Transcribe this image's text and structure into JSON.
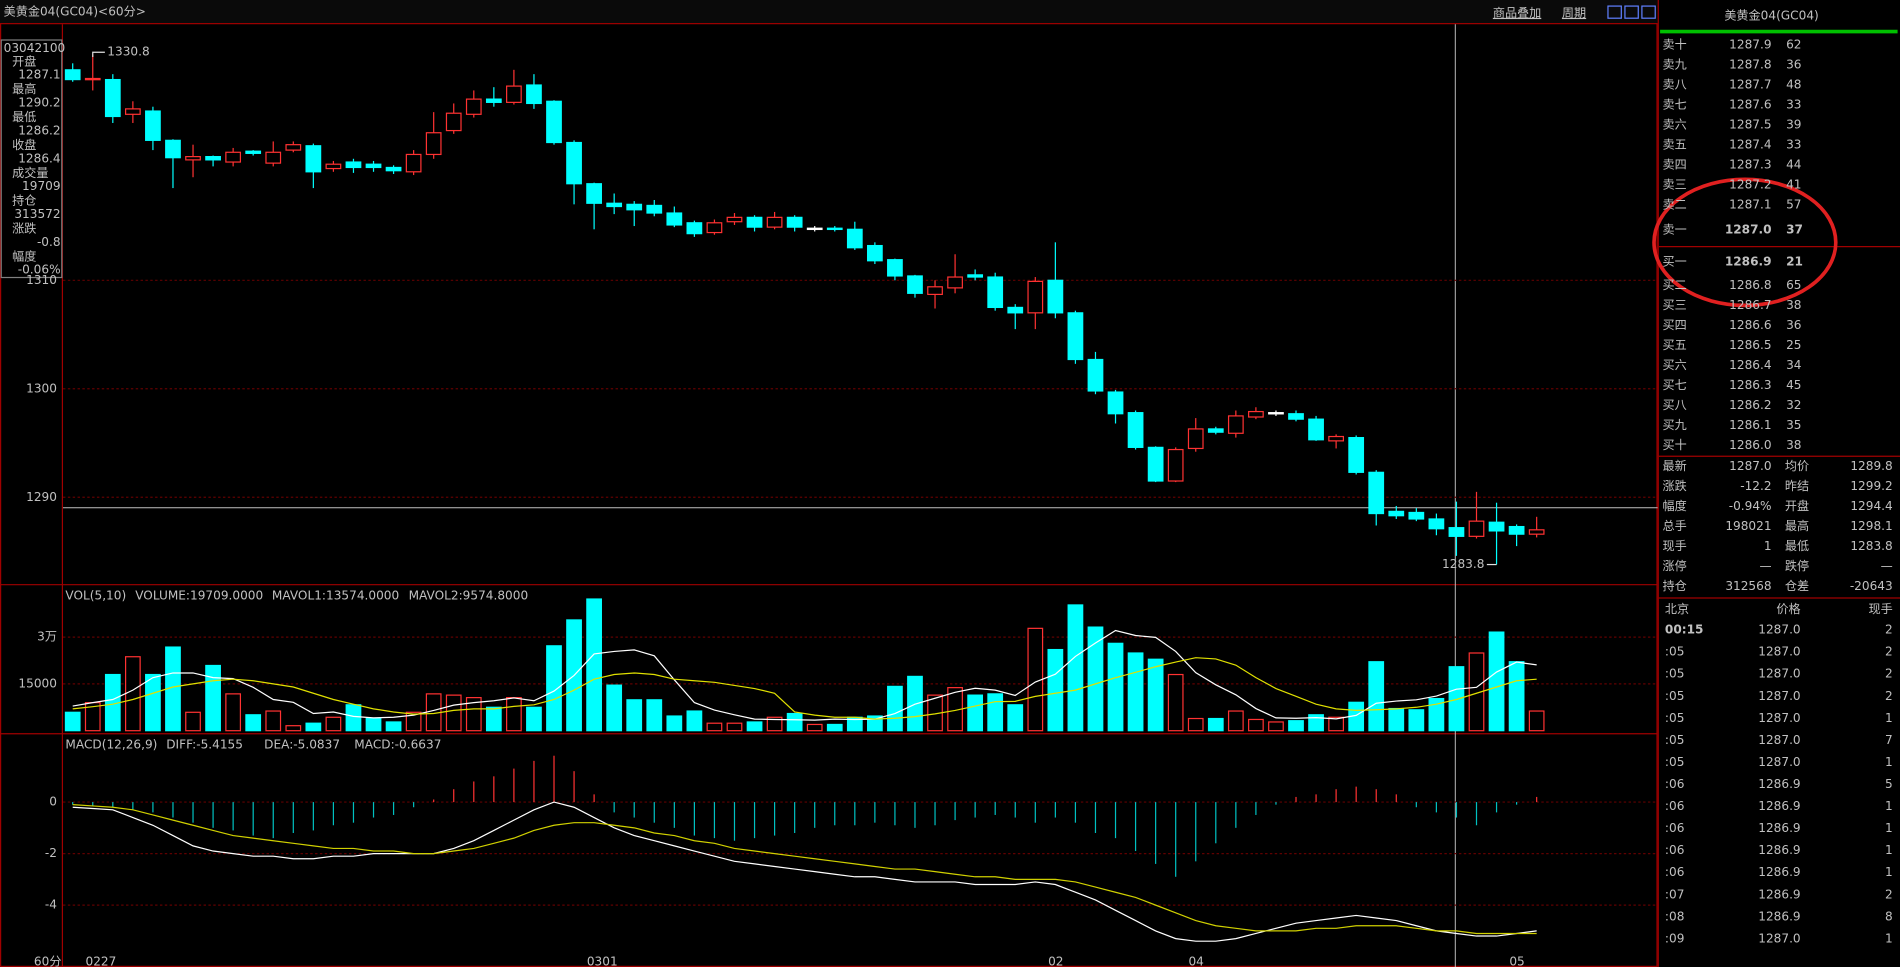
{
  "header": {
    "title": "美黄金04(GC04)<60分>",
    "menu": [
      "商品叠加",
      "周期"
    ],
    "period": "60分"
  },
  "info_box": {
    "time": "03042100",
    "rows": [
      {
        "label": "开盘",
        "value": "1287.1",
        "color": "#00e000"
      },
      {
        "label": "最高",
        "value": "1290.2",
        "color": "#ff3232"
      },
      {
        "label": "最低",
        "value": "1286.2",
        "color": "#00e000"
      },
      {
        "label": "收盘",
        "value": "1286.4",
        "color": "#00e000"
      },
      {
        "label": "成交量",
        "value": "19709",
        "color": "#ffff00"
      },
      {
        "label": "持仓",
        "value": "313572",
        "color": "#ffff00"
      },
      {
        "label": "涨跌",
        "value": "-0.8",
        "color": "#00e000"
      },
      {
        "label": "幅度",
        "value": "-0.06%",
        "color": "#00e000"
      }
    ]
  },
  "chart_data": [
    {
      "type": "candlestick",
      "ylim": [
        1282,
        1333.6
      ],
      "yticks": [
        1290,
        1300,
        1310
      ],
      "categories": [
        null,
        "0227",
        null,
        null,
        null,
        null,
        null,
        null,
        null,
        null,
        null,
        null,
        null,
        null,
        null,
        null,
        null,
        null,
        null,
        null,
        null,
        null,
        null,
        null,
        null,
        null,
        "0301",
        null,
        null,
        null,
        null,
        null,
        null,
        null,
        null,
        null,
        null,
        null,
        null,
        null,
        null,
        null,
        null,
        null,
        null,
        null,
        null,
        null,
        null,
        "02",
        null,
        null,
        null,
        null,
        null,
        null,
        "04",
        null,
        null,
        null,
        null,
        null,
        null,
        null,
        null,
        null,
        null,
        null,
        null,
        null,
        null,
        null,
        "05",
        null
      ],
      "open": [
        1329.4,
        1328.5,
        1328.5,
        1325.3,
        1325.6,
        1322.9,
        1321.1,
        1321.4,
        1320.9,
        1321.9,
        1320.8,
        1322,
        1322.4,
        1320.3,
        1320.9,
        1320.7,
        1320.4,
        1320,
        1321.6,
        1323.8,
        1325.3,
        1326.7,
        1326.4,
        1328,
        1326.5,
        1322.7,
        1318.9,
        1317.1,
        1317,
        1316.9,
        1316.2,
        1315.3,
        1314.4,
        1315.4,
        1315.8,
        1314.9,
        1315.8,
        1314.8,
        1314.8,
        1314.7,
        1313.2,
        1311.9,
        1310.4,
        1308.7,
        1309.3,
        1310.5,
        1310.3,
        1307.5,
        1307,
        1310,
        1307,
        1302.7,
        1299.7,
        1297.8,
        1294.6,
        1291.5,
        1294.5,
        1296.3,
        1295.9,
        1297.4,
        1297.8,
        1297.7,
        1297.2,
        1295.2,
        1295.5,
        1292.3,
        1288.7,
        1288.6,
        1288,
        1287.2,
        1286.4,
        1287.7,
        1287.3,
        1286.6
      ],
      "high": [
        1330,
        1330.8,
        1329,
        1326.5,
        1326,
        1323,
        1322.5,
        1321.5,
        1322.2,
        1322,
        1322.8,
        1322.8,
        1322.6,
        1321,
        1321.2,
        1321,
        1320.6,
        1322,
        1325.5,
        1326.3,
        1327.5,
        1327.8,
        1329.4,
        1329,
        1326.6,
        1322.9,
        1319,
        1318,
        1317.3,
        1317.4,
        1316.8,
        1315.5,
        1315.6,
        1316.2,
        1316,
        1316.3,
        1316,
        1315,
        1315,
        1315.4,
        1313.5,
        1312,
        1310.5,
        1310,
        1312.4,
        1311,
        1310.7,
        1307.8,
        1310.3,
        1313.5,
        1307.2,
        1303.4,
        1299.9,
        1298,
        1294.7,
        1294.6,
        1297.3,
        1296.5,
        1298,
        1298.3,
        1298,
        1298,
        1297.5,
        1295.8,
        1295.7,
        1292.5,
        1289.2,
        1289,
        1288.5,
        1289.6,
        1290.5,
        1289.5,
        1287.5,
        1288.2
      ],
      "low": [
        1328.3,
        1327.5,
        1324.5,
        1324.5,
        1322,
        1318.5,
        1319.5,
        1320.5,
        1320.5,
        1321.5,
        1320.5,
        1321.8,
        1318.5,
        1320,
        1319.9,
        1320,
        1319.8,
        1319.7,
        1321.2,
        1323.5,
        1325,
        1326,
        1326.2,
        1325.8,
        1322.5,
        1317,
        1314.7,
        1316.1,
        1315,
        1315.9,
        1314.9,
        1314,
        1314.2,
        1315.1,
        1314.5,
        1314.7,
        1314.5,
        1314.5,
        1314.5,
        1312.8,
        1311.5,
        1310,
        1308.4,
        1307.4,
        1308.8,
        1310,
        1307.2,
        1305.5,
        1305.5,
        1306.5,
        1302.3,
        1299.5,
        1296.8,
        1294.4,
        1291.4,
        1291.4,
        1294.2,
        1295.8,
        1295.5,
        1297.2,
        1297.5,
        1297,
        1295.2,
        1294.5,
        1292.1,
        1287.4,
        1288,
        1287.8,
        1286.5,
        1284.6,
        1286.2,
        1283.8,
        1285.5,
        1286.3
      ],
      "close": [
        1328.5,
        1328.6,
        1325.1,
        1325.8,
        1322.9,
        1321.3,
        1321.4,
        1321.1,
        1321.8,
        1321.7,
        1321.8,
        1322.5,
        1320,
        1320.7,
        1320.4,
        1320.4,
        1320.1,
        1321.6,
        1323.6,
        1325.4,
        1326.7,
        1326.4,
        1327.9,
        1326.3,
        1322.7,
        1318.9,
        1317.1,
        1316.8,
        1316.5,
        1316.2,
        1315.1,
        1314.3,
        1315.3,
        1315.8,
        1314.9,
        1315.8,
        1314.9,
        1314.8,
        1314.7,
        1313,
        1311.8,
        1310.4,
        1308.8,
        1309.4,
        1310.3,
        1310.3,
        1307.5,
        1307,
        1309.9,
        1307,
        1302.7,
        1299.8,
        1297.7,
        1294.6,
        1291.5,
        1294.4,
        1296.3,
        1296,
        1297.5,
        1297.9,
        1297.8,
        1297.2,
        1295.3,
        1295.6,
        1292.3,
        1288.5,
        1288.3,
        1288,
        1287.1,
        1286.4,
        1287.8,
        1286.9,
        1286.6,
        1287
      ],
      "annotations": [
        {
          "text": "1330.8",
          "index": 1,
          "value": 1330.8
        },
        {
          "text": "1283.8",
          "index": 71,
          "value": 1283.8
        }
      ]
    },
    {
      "type": "bar",
      "title": "VOL(5,10)",
      "readouts": [
        {
          "text": "VOLUME:19709.0000",
          "color": "#c0c0c0"
        },
        {
          "text": "MAVOL1:13574.0000",
          "color": "#ffffff"
        },
        {
          "text": "MAVOL2:9574.8000",
          "color": "#ffff00"
        }
      ],
      "ylim": [
        0,
        46600
      ],
      "yticks": [
        {
          "value": 30000,
          "label": "3万"
        },
        15000
      ],
      "values": [
        5900,
        9000,
        18000,
        23700,
        18000,
        26800,
        5900,
        20900,
        11800,
        5100,
        6300,
        1600,
        2400,
        4300,
        8300,
        3900,
        2800,
        5900,
        11800,
        11400,
        10600,
        7500,
        10600,
        7500,
        27200,
        35500,
        42200,
        14600,
        9900,
        9900,
        4700,
        6300,
        2400,
        2400,
        2800,
        4300,
        5500,
        2000,
        2000,
        4300,
        4700,
        14200,
        17400,
        11400,
        13800,
        11400,
        11800,
        8300,
        32800,
        26000,
        40300,
        33200,
        28000,
        24900,
        22900,
        18000,
        3900,
        3900,
        6300,
        3600,
        2800,
        3200,
        5100,
        4300,
        9100,
        22100,
        7100,
        6700,
        10300,
        20500,
        24900,
        31600,
        22100,
        6300
      ],
      "series": [
        {
          "color": "#ffffff",
          "values": [
            7900,
            9000,
            10000,
            13000,
            17000,
            18500,
            18500,
            17000,
            16700,
            13900,
            10000,
            9100,
            5500,
            6000,
            4600,
            4100,
            4300,
            5000,
            6500,
            8200,
            9000,
            9600,
            10500,
            9600,
            12700,
            17700,
            24600,
            25400,
            25900,
            24000,
            16300,
            9000,
            6600,
            5100,
            3700,
            3600,
            3500,
            3400,
            3700,
            3600,
            3700,
            5500,
            8500,
            10400,
            12300,
            13600,
            13000,
            11300,
            15600,
            18100,
            23800,
            28100,
            32100,
            30500,
            29900,
            25400,
            18600,
            14700,
            11500,
            7100,
            4100,
            4000,
            4200,
            3800,
            4900,
            8800,
            9500,
            9900,
            11100,
            13300,
            13900,
            18800,
            22000,
            21100
          ]
        },
        {
          "color": "#e0e000",
          "values": [
            7000,
            7700,
            8500,
            10000,
            12000,
            14000,
            15000,
            16000,
            16500,
            16000,
            15000,
            14000,
            12000,
            10000,
            8500,
            7000,
            6000,
            5300,
            5500,
            6500,
            7000,
            7000,
            7800,
            8300,
            10000,
            13000,
            16500,
            18000,
            18500,
            18000,
            16500,
            16000,
            15500,
            14500,
            13500,
            12000,
            6000,
            5000,
            4300,
            4300,
            3700,
            4000,
            4500,
            5400,
            6500,
            7900,
            9300,
            9400,
            11000,
            12000,
            13000,
            15000,
            17000,
            18700,
            20500,
            22000,
            23400,
            23000,
            21000,
            17000,
            13500,
            11000,
            8500,
            7000,
            6500,
            6700,
            7000,
            7500,
            8500,
            10000,
            12000,
            14000,
            16000,
            16500
          ]
        }
      ]
    },
    {
      "type": "macd",
      "title": "MACD(12,26,9)",
      "readouts": [
        {
          "text": "DIFF:-5.4155",
          "color": "#ffffff"
        },
        {
          "text": "DEA:-5.0837",
          "color": "#ffff00"
        },
        {
          "text": "MACD:-0.6637",
          "color": "#ff00ff"
        }
      ],
      "ylim": [
        -6.26,
        2.63
      ],
      "yticks": [
        0,
        -2,
        -4
      ],
      "up_color": "#ff3232",
      "down_color": "#00c0c0",
      "values": [
        -0.1,
        -0.15,
        -0.2,
        -0.3,
        -0.4,
        -0.6,
        -0.8,
        -1,
        -1.1,
        -1.3,
        -1.4,
        -1.2,
        -1.1,
        -0.9,
        -0.8,
        -0.6,
        -0.5,
        -0.2,
        0.1,
        0.5,
        0.8,
        1.0,
        1.3,
        1.6,
        1.8,
        1.2,
        0.3,
        -0.4,
        -0.6,
        -0.8,
        -1.0,
        -1.3,
        -1.4,
        -1.5,
        -1.4,
        -1.3,
        -1.2,
        -1.0,
        -0.9,
        -0.9,
        -0.8,
        -0.9,
        -1.0,
        -0.9,
        -0.7,
        -0.6,
        -0.5,
        -0.6,
        -0.8,
        -0.6,
        -0.8,
        -1.2,
        -1.4,
        -1.9,
        -2.4,
        -2.9,
        -2.3,
        -1.6,
        -1.0,
        -0.5,
        -0.1,
        0.2,
        0.3,
        0.5,
        0.6,
        0.5,
        0.3,
        -0.2,
        -0.4,
        -0.6,
        -0.9,
        -0.4,
        -0.1,
        0.2
      ],
      "series": [
        {
          "color": "#ffffff",
          "values": [
            -0.2,
            -0.25,
            -0.3,
            -0.6,
            -0.9,
            -1.3,
            -1.7,
            -1.9,
            -2.0,
            -2.1,
            -2.1,
            -2.2,
            -2.2,
            -2.1,
            -2.1,
            -2.0,
            -2.0,
            -2.0,
            -2.0,
            -1.8,
            -1.5,
            -1.1,
            -0.7,
            -0.3,
            0,
            -0.2,
            -0.6,
            -1.0,
            -1.3,
            -1.5,
            -1.7,
            -1.9,
            -2.1,
            -2.3,
            -2.4,
            -2.5,
            -2.6,
            -2.7,
            -2.8,
            -2.9,
            -2.9,
            -3.0,
            -3.1,
            -3.1,
            -3.1,
            -3.2,
            -3.2,
            -3.2,
            -3.1,
            -3.2,
            -3.5,
            -3.8,
            -4.2,
            -4.6,
            -5.0,
            -5.3,
            -5.4,
            -5.4,
            -5.3,
            -5.1,
            -4.9,
            -4.7,
            -4.6,
            -4.5,
            -4.4,
            -4.5,
            -4.6,
            -4.8,
            -5.0,
            -5.1,
            -5.2,
            -5.2,
            -5.1,
            -5.0
          ]
        },
        {
          "color": "#d0d000",
          "values": [
            -0.1,
            -0.15,
            -0.2,
            -0.3,
            -0.5,
            -0.7,
            -0.9,
            -1.1,
            -1.3,
            -1.4,
            -1.5,
            -1.6,
            -1.7,
            -1.8,
            -1.8,
            -1.9,
            -1.9,
            -2.0,
            -2.0,
            -1.9,
            -1.8,
            -1.6,
            -1.4,
            -1.1,
            -0.9,
            -0.8,
            -0.8,
            -0.9,
            -1.0,
            -1.2,
            -1.3,
            -1.5,
            -1.6,
            -1.8,
            -1.9,
            -2.0,
            -2.1,
            -2.2,
            -2.3,
            -2.4,
            -2.5,
            -2.6,
            -2.6,
            -2.7,
            -2.8,
            -2.9,
            -2.9,
            -3.0,
            -3.0,
            -3.0,
            -3.1,
            -3.3,
            -3.5,
            -3.7,
            -4.0,
            -4.3,
            -4.6,
            -4.8,
            -4.9,
            -5.0,
            -5.0,
            -5.0,
            -4.9,
            -4.9,
            -4.8,
            -4.8,
            -4.8,
            -4.9,
            -5.0,
            -5.0,
            -5.1,
            -5.1,
            -5.1,
            -5.1
          ]
        }
      ]
    }
  ],
  "quote": {
    "title": "美黄金04(GC04)",
    "asks": [
      [
        "卖十",
        "1287.9",
        "62"
      ],
      [
        "卖九",
        "1287.8",
        "36"
      ],
      [
        "卖八",
        "1287.7",
        "48"
      ],
      [
        "卖七",
        "1287.6",
        "33"
      ],
      [
        "卖六",
        "1287.5",
        "39"
      ],
      [
        "卖五",
        "1287.4",
        "33"
      ],
      [
        "卖四",
        "1287.3",
        "44"
      ],
      [
        "卖三",
        "1287.2",
        "41"
      ],
      [
        "卖二",
        "1287.1",
        "57"
      ],
      [
        "卖一",
        "1287.0",
        "37"
      ]
    ],
    "bids": [
      [
        "买一",
        "1286.9",
        "21"
      ],
      [
        "买二",
        "1286.8",
        "65"
      ],
      [
        "买三",
        "1286.7",
        "38"
      ],
      [
        "买四",
        "1286.6",
        "36"
      ],
      [
        "买五",
        "1286.5",
        "25"
      ],
      [
        "买六",
        "1286.4",
        "34"
      ],
      [
        "买七",
        "1286.3",
        "45"
      ],
      [
        "买八",
        "1286.2",
        "32"
      ],
      [
        "买九",
        "1286.1",
        "35"
      ],
      [
        "买十",
        "1286.0",
        "38"
      ]
    ],
    "stats": [
      [
        "最新",
        "1287.0",
        "均价",
        "1289.8"
      ],
      [
        "涨跌",
        "-12.2",
        "昨结",
        "1299.2"
      ],
      [
        "幅度",
        "-0.94%",
        "开盘",
        "1294.4"
      ],
      [
        "总手",
        "198021",
        "最高",
        "1298.1"
      ],
      [
        "现手",
        "1",
        "最低",
        "1283.8"
      ],
      [
        "涨停",
        "—",
        "跌停",
        "—"
      ],
      [
        "持仓",
        "312568",
        "仓差",
        "-20643"
      ]
    ],
    "stat_colors": [
      [
        "#00e000",
        "#ff3232"
      ],
      [
        "#00e000",
        "#ffffff"
      ],
      [
        "#00e000",
        "#ffffff"
      ],
      [
        "#ffff00",
        "#00e000"
      ],
      [
        "#ffff00",
        "#00e000"
      ],
      [
        "#ffffff",
        "#ffffff"
      ],
      [
        "#ffff00",
        "#ffffff"
      ]
    ],
    "ticks_header": [
      "北京",
      "价格",
      "现手"
    ],
    "ticks": [
      [
        "00:15",
        "1287.0",
        "2",
        "#00e000"
      ],
      [
        ":05",
        "1287.0",
        "2",
        "#00e000"
      ],
      [
        ":05",
        "1287.0",
        "2",
        "#00e000"
      ],
      [
        ":05",
        "1287.0",
        "2",
        "#00e000"
      ],
      [
        ":05",
        "1287.0",
        "1",
        "#00e000"
      ],
      [
        ":05",
        "1287.0",
        "7",
        "#00e000"
      ],
      [
        ":05",
        "1287.0",
        "1",
        "#ff3232"
      ],
      [
        ":06",
        "1286.9",
        "5",
        "#00e000"
      ],
      [
        ":06",
        "1286.9",
        "1",
        "#00e000"
      ],
      [
        ":06",
        "1286.9",
        "1",
        "#00e000"
      ],
      [
        ":06",
        "1286.9",
        "1",
        "#00e000"
      ],
      [
        ":06",
        "1286.9",
        "1",
        "#00e000"
      ],
      [
        ":07",
        "1286.9",
        "2",
        "#00e000"
      ],
      [
        ":08",
        "1286.9",
        "8",
        "#ff3232"
      ],
      [
        ":09",
        "1287.0",
        "1",
        "#ff3232"
      ]
    ]
  }
}
